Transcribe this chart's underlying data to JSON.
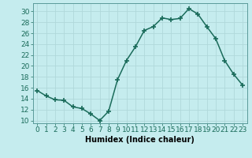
{
  "x": [
    0,
    1,
    2,
    3,
    4,
    5,
    6,
    7,
    8,
    9,
    10,
    11,
    12,
    13,
    14,
    15,
    16,
    17,
    18,
    19,
    20,
    21,
    22,
    23
  ],
  "y": [
    15.5,
    14.5,
    13.8,
    13.7,
    12.5,
    12.2,
    11.2,
    10.0,
    11.7,
    17.5,
    21.0,
    23.5,
    26.5,
    27.2,
    28.8,
    28.5,
    28.7,
    30.5,
    29.5,
    27.2,
    25.0,
    21.0,
    18.5,
    16.5
  ],
  "line_color": "#1a6b5a",
  "marker": "+",
  "markersize": 4,
  "markeredgewidth": 1.2,
  "linewidth": 1.1,
  "xlabel": "Humidex (Indice chaleur)",
  "ylabel": "",
  "xlim": [
    -0.5,
    23.5
  ],
  "ylim": [
    9.5,
    31.5
  ],
  "yticks": [
    10,
    12,
    14,
    16,
    18,
    20,
    22,
    24,
    26,
    28,
    30
  ],
  "xticks": [
    0,
    1,
    2,
    3,
    4,
    5,
    6,
    7,
    8,
    9,
    10,
    11,
    12,
    13,
    14,
    15,
    16,
    17,
    18,
    19,
    20,
    21,
    22,
    23
  ],
  "xtick_labels": [
    "0",
    "1",
    "2",
    "3",
    "4",
    "5",
    "6",
    "7",
    "8",
    "9",
    "10",
    "11",
    "12",
    "13",
    "14",
    "15",
    "16",
    "17",
    "18",
    "19",
    "20",
    "21",
    "22",
    "23"
  ],
  "background_color": "#c5ecee",
  "grid_color": "#b0d8da",
  "label_fontsize": 7,
  "tick_fontsize": 6.5
}
